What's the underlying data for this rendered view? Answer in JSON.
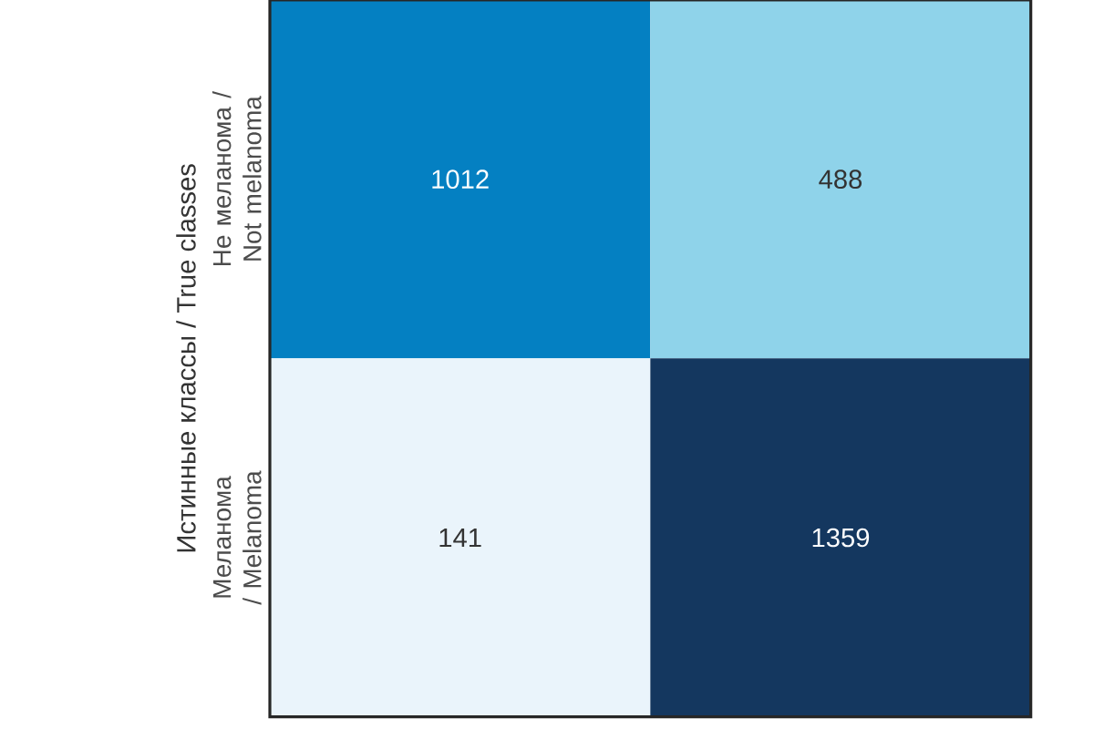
{
  "chart_data": {
    "type": "heatmap",
    "data_labels": true,
    "ylabel": "Истинные классы / True classes",
    "categories": [
      null,
      null
    ],
    "y_categories": [
      "Не меланома / Not melanoma",
      "Меланома / Melanoma"
    ],
    "cells": [
      [
        1012,
        488
      ],
      [
        141,
        1359
      ]
    ]
  }
}
